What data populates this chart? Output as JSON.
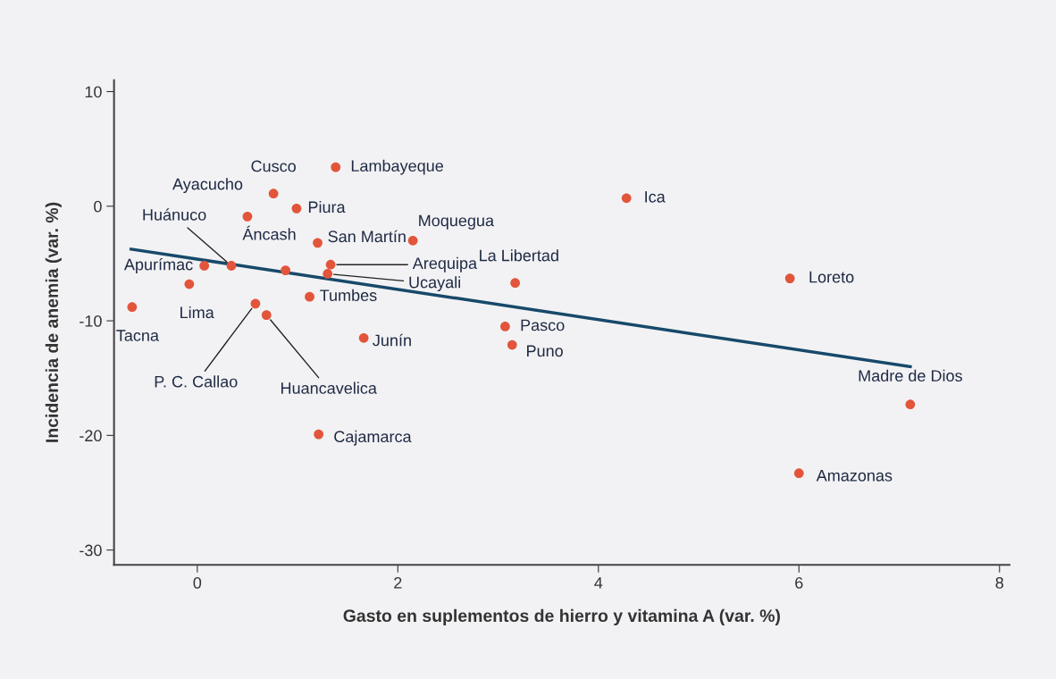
{
  "chart_data": {
    "type": "scatter",
    "xlabel": "Gasto en suplementos de hierro y vitamina A (var. %)",
    "ylabel": "Incidencia de anemia (var. %)",
    "xlim": [
      -0.83,
      8.1
    ],
    "ylim": [
      -31.3,
      11.0
    ],
    "xticks": [
      0,
      2,
      4,
      6,
      8
    ],
    "yticks": [
      -30,
      -20,
      -10,
      0,
      10
    ],
    "grid": false,
    "legend": false,
    "marker": "circle",
    "series": [
      {
        "color": "#e2553b",
        "x": [
          -0.65,
          -0.08,
          0.07,
          0.34,
          0.5,
          0.76,
          0.99,
          1.38,
          0.88,
          1.2,
          1.33,
          1.3,
          1.12,
          0.58,
          0.69,
          1.66,
          1.21,
          2.15,
          3.17,
          3.07,
          3.14,
          4.28,
          5.91,
          7.11,
          6.0
        ],
        "values": [
          -8.8,
          -6.8,
          -5.2,
          -5.2,
          -0.9,
          1.1,
          -0.2,
          3.4,
          -5.6,
          -3.2,
          -5.1,
          -5.9,
          -7.9,
          -8.5,
          -9.5,
          -11.5,
          -19.9,
          -3.0,
          -6.7,
          -10.5,
          -12.1,
          0.7,
          -6.3,
          -17.3,
          -23.3
        ]
      },
      {
        "type": "line",
        "marker": "none",
        "color": "#17496a",
        "x": [
          -0.66,
          7.11
        ],
        "values": [
          -3.75,
          -14.0
        ]
      }
    ],
    "annotations": [
      {
        "text": "Tacna",
        "x": -0.65,
        "y": -8.8
      },
      {
        "text": "Lima",
        "x": -0.08,
        "y": -6.8
      },
      {
        "text": "Apurímac",
        "x": 0.07,
        "y": -5.2
      },
      {
        "text": "Huánuco",
        "x": 0.34,
        "y": -5.2
      },
      {
        "text": "Ayacucho",
        "x": 0.5,
        "y": -0.9
      },
      {
        "text": "Cusco",
        "x": 0.76,
        "y": 1.1
      },
      {
        "text": "Piura",
        "x": 0.99,
        "y": -0.2
      },
      {
        "text": "Lambayeque",
        "x": 1.38,
        "y": 3.4
      },
      {
        "text": "Áncash",
        "x": 0.88,
        "y": -5.6
      },
      {
        "text": "San Martín",
        "x": 1.2,
        "y": -3.2
      },
      {
        "text": "Arequipa",
        "x": 1.33,
        "y": -5.1
      },
      {
        "text": "Ucayali",
        "x": 1.3,
        "y": -5.9
      },
      {
        "text": "Tumbes",
        "x": 1.12,
        "y": -7.9
      },
      {
        "text": "P. C. Callao",
        "x": 0.58,
        "y": -8.5
      },
      {
        "text": "Huancavelica",
        "x": 0.69,
        "y": -9.5
      },
      {
        "text": "Junín",
        "x": 1.66,
        "y": -11.5
      },
      {
        "text": "Cajamarca",
        "x": 1.21,
        "y": -19.9
      },
      {
        "text": "Moquegua",
        "x": 2.15,
        "y": -3.0
      },
      {
        "text": "La Libertad",
        "x": 3.17,
        "y": -6.7
      },
      {
        "text": "Pasco",
        "x": 3.07,
        "y": -10.5
      },
      {
        "text": "Puno",
        "x": 3.14,
        "y": -12.1
      },
      {
        "text": "Ica",
        "x": 4.28,
        "y": 0.7
      },
      {
        "text": "Loreto",
        "x": 5.91,
        "y": -6.3
      },
      {
        "text": "Madre de Dios",
        "x": 7.11,
        "y": -17.3
      },
      {
        "text": "Amazonas",
        "x": 6.0,
        "y": -23.3
      }
    ]
  }
}
